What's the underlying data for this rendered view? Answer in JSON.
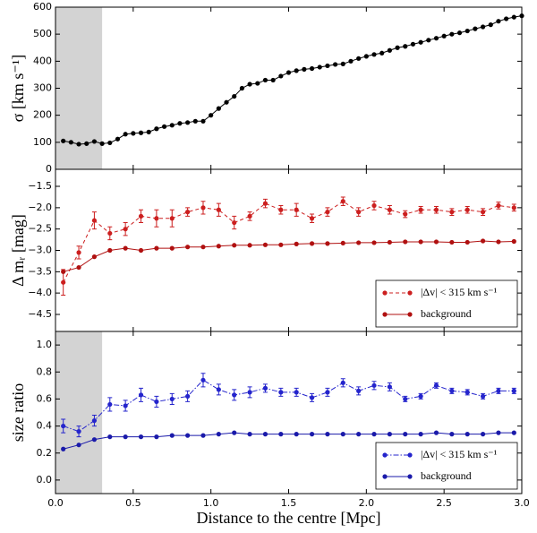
{
  "chart_data": [
    {
      "type": "line",
      "ylabel": "σ [km s⁻¹]",
      "xlim": [
        0,
        3
      ],
      "xticks": [
        0,
        0.5,
        1,
        1.5,
        2,
        2.5,
        3
      ],
      "ylim": [
        0,
        600
      ],
      "yticks": [
        0,
        100,
        200,
        300,
        400,
        500,
        600
      ],
      "highlight_xrange": [
        0,
        0.3
      ],
      "x": [
        0.05,
        0.1,
        0.15,
        0.2,
        0.25,
        0.3,
        0.35,
        0.4,
        0.45,
        0.5,
        0.55,
        0.6,
        0.65,
        0.7,
        0.75,
        0.8,
        0.85,
        0.9,
        0.95,
        1.0,
        1.05,
        1.1,
        1.15,
        1.2,
        1.25,
        1.3,
        1.35,
        1.4,
        1.45,
        1.5,
        1.55,
        1.6,
        1.65,
        1.7,
        1.75,
        1.8,
        1.85,
        1.9,
        1.95,
        2.0,
        2.05,
        2.1,
        2.15,
        2.2,
        2.25,
        2.3,
        2.35,
        2.4,
        2.45,
        2.5,
        2.55,
        2.6,
        2.65,
        2.7,
        2.75,
        2.8,
        2.85,
        2.9,
        2.95,
        3.0
      ],
      "series": [
        {
          "color": "#000000",
          "linestyle": "solid",
          "values": [
            105,
            100,
            93,
            95,
            103,
            95,
            98,
            112,
            130,
            133,
            135,
            138,
            150,
            158,
            163,
            170,
            173,
            178,
            178,
            200,
            225,
            248,
            270,
            300,
            315,
            318,
            330,
            330,
            345,
            358,
            365,
            370,
            373,
            378,
            383,
            388,
            390,
            400,
            410,
            418,
            425,
            430,
            440,
            450,
            455,
            463,
            470,
            478,
            485,
            493,
            500,
            505,
            512,
            520,
            527,
            535,
            548,
            557,
            563,
            568
          ]
        }
      ]
    },
    {
      "type": "line",
      "ylabel": "Δ mᵣ [mag]",
      "xlim": [
        0,
        3
      ],
      "xticks": [
        0,
        0.5,
        1,
        1.5,
        2,
        2.5,
        3
      ],
      "ylim": [
        -4.9,
        -1.1
      ],
      "yticks": [
        {
          "value": -1.5,
          "label": "−1.5"
        },
        {
          "value": -2,
          "label": "−2.0"
        },
        {
          "value": -2.5,
          "label": "−2.5"
        },
        {
          "value": -3,
          "label": "−3.0"
        },
        {
          "value": -3.5,
          "label": "−3.5"
        },
        {
          "value": -4,
          "label": "−4.0"
        },
        {
          "value": -4.5,
          "label": "−4.5"
        }
      ],
      "legend": "lower right",
      "x": [
        0.05,
        0.15,
        0.25,
        0.35,
        0.45,
        0.55,
        0.65,
        0.75,
        0.85,
        0.95,
        1.05,
        1.15,
        1.25,
        1.35,
        1.45,
        1.55,
        1.65,
        1.75,
        1.85,
        1.95,
        2.05,
        2.15,
        2.25,
        2.35,
        2.45,
        2.55,
        2.65,
        2.75,
        2.85,
        2.95
      ],
      "series": [
        {
          "name": "|Δv| < 315 km s⁻¹",
          "color": "#cc1f1f",
          "linestyle": "dashed",
          "values": [
            -3.75,
            -3.05,
            -2.3,
            -2.6,
            -2.5,
            -2.2,
            -2.25,
            -2.25,
            -2.1,
            -2.0,
            -2.05,
            -2.35,
            -2.2,
            -1.9,
            -2.05,
            -2.05,
            -2.25,
            -2.1,
            -1.85,
            -2.1,
            -1.95,
            -2.05,
            -2.15,
            -2.05,
            -2.05,
            -2.1,
            -2.05,
            -2.1,
            -1.95,
            -2.0
          ],
          "errors": [
            0.3,
            0.15,
            0.2,
            0.15,
            0.15,
            0.15,
            0.2,
            0.2,
            0.1,
            0.15,
            0.15,
            0.15,
            0.1,
            0.1,
            0.1,
            0.15,
            0.1,
            0.1,
            0.1,
            0.1,
            0.1,
            0.1,
            0.08,
            0.08,
            0.08,
            0.08,
            0.08,
            0.08,
            0.08,
            0.08
          ]
        },
        {
          "name": "background",
          "color": "#b01010",
          "linestyle": "solid",
          "values": [
            -3.5,
            -3.4,
            -3.15,
            -3.0,
            -2.95,
            -3.0,
            -2.95,
            -2.95,
            -2.92,
            -2.92,
            -2.9,
            -2.88,
            -2.88,
            -2.87,
            -2.87,
            -2.85,
            -2.84,
            -2.84,
            -2.83,
            -2.82,
            -2.82,
            -2.81,
            -2.8,
            -2.8,
            -2.8,
            -2.81,
            -2.81,
            -2.78,
            -2.8,
            -2.79
          ]
        }
      ]
    },
    {
      "type": "line",
      "ylabel": "size ratio",
      "xlabel": "Distance to the centre [Mpc]",
      "xlim": [
        0,
        3
      ],
      "xticks": [
        {
          "value": 0,
          "label": "0.0"
        },
        0.5,
        {
          "value": 1,
          "label": "1.0"
        },
        1.5,
        {
          "value": 2,
          "label": "2.0"
        },
        2.5,
        {
          "value": 3,
          "label": "3.0"
        }
      ],
      "ylim": [
        -0.1,
        1.1
      ],
      "yticks": [
        {
          "value": 0,
          "label": "0.0"
        },
        0.2,
        0.4,
        0.6,
        0.8,
        {
          "value": 1,
          "label": "1.0"
        }
      ],
      "highlight_xrange": [
        0,
        0.3
      ],
      "legend": "lower right",
      "x": [
        0.05,
        0.15,
        0.25,
        0.35,
        0.45,
        0.55,
        0.65,
        0.75,
        0.85,
        0.95,
        1.05,
        1.15,
        1.25,
        1.35,
        1.45,
        1.55,
        1.65,
        1.75,
        1.85,
        1.95,
        2.05,
        2.15,
        2.25,
        2.35,
        2.45,
        2.55,
        2.65,
        2.75,
        2.85,
        2.95
      ],
      "series": [
        {
          "name": "|Δv| < 315 km s⁻¹",
          "color": "#2424cc",
          "linestyle": "dashdot",
          "values": [
            0.4,
            0.36,
            0.44,
            0.56,
            0.55,
            0.63,
            0.58,
            0.6,
            0.62,
            0.74,
            0.67,
            0.63,
            0.65,
            0.68,
            0.65,
            0.65,
            0.61,
            0.65,
            0.72,
            0.66,
            0.7,
            0.69,
            0.6,
            0.62,
            0.7,
            0.66,
            0.65,
            0.62,
            0.66,
            0.66
          ],
          "errors": [
            0.05,
            0.04,
            0.04,
            0.05,
            0.04,
            0.05,
            0.04,
            0.04,
            0.04,
            0.05,
            0.04,
            0.04,
            0.04,
            0.03,
            0.03,
            0.03,
            0.03,
            0.03,
            0.03,
            0.03,
            0.03,
            0.03,
            0.02,
            0.02,
            0.02,
            0.02,
            0.02,
            0.02,
            0.02,
            0.02
          ]
        },
        {
          "name": "background",
          "color": "#1a1aaa",
          "linestyle": "solid",
          "values": [
            0.23,
            0.26,
            0.3,
            0.32,
            0.32,
            0.32,
            0.32,
            0.33,
            0.33,
            0.33,
            0.34,
            0.35,
            0.34,
            0.34,
            0.34,
            0.34,
            0.34,
            0.34,
            0.34,
            0.34,
            0.34,
            0.34,
            0.34,
            0.34,
            0.35,
            0.34,
            0.34,
            0.34,
            0.35,
            0.35
          ]
        }
      ]
    }
  ]
}
